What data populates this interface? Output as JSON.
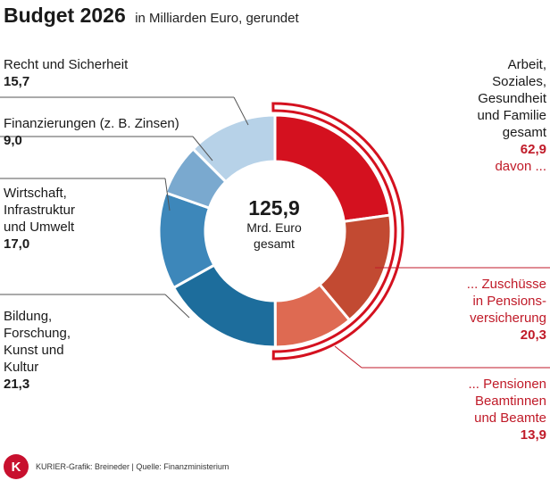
{
  "header": {
    "title": "Budget 2026",
    "subtitle": "in Milliarden Euro, gerundet"
  },
  "center": {
    "total": "125,9",
    "unit": "Mrd. Euro",
    "suffix": "gesamt"
  },
  "labels": {
    "recht": {
      "name": "Recht und Sicherheit",
      "value": "15,7"
    },
    "finanz": {
      "name": "Finanzierungen (z. B. Zinsen)",
      "value": "9,0"
    },
    "wirtschaft": {
      "name": [
        "Wirtschaft,",
        "Infrastruktur",
        "und Umwelt"
      ],
      "value": "17,0"
    },
    "bildung": {
      "name": [
        "Bildung,",
        "Forschung,",
        "Kunst und",
        "Kultur"
      ],
      "value": "21,3"
    },
    "arbeit": {
      "name": [
        "Arbeit,",
        "Soziales,",
        "Gesundheit",
        "und Familie",
        "gesamt"
      ],
      "value": "62,9",
      "note": "davon ..."
    },
    "zuschuesse": {
      "name": [
        "... Zuschüsse",
        "in Pensions-",
        "versicherung"
      ],
      "value": "20,3"
    },
    "pensionen": {
      "name": [
        "... Pensionen",
        "Beamtinnen",
        "und Beamte"
      ],
      "value": "13,9"
    }
  },
  "footer": {
    "logo_letter": "K",
    "credit": "KURIER-Grafik: Breineder | Quelle: Finanzministerium"
  },
  "chart_data": {
    "type": "pie",
    "total": 125.9,
    "slices": [
      {
        "label": "Arbeit, Soziales, Gesundheit und Familie (übrige)",
        "value": 28.7,
        "color": "#d4111f"
      },
      {
        "label": "Zuschüsse in Pensionsversicherung",
        "value": 20.3,
        "color": "#c24a32"
      },
      {
        "label": "Pensionen Beamtinnen und Beamte",
        "value": 13.9,
        "color": "#de6a52"
      },
      {
        "label": "Bildung, Forschung, Kunst und Kultur",
        "value": 21.3,
        "color": "#1d6d9c"
      },
      {
        "label": "Wirtschaft, Infrastruktur und Umwelt",
        "value": 17.0,
        "color": "#3d87ba"
      },
      {
        "label": "Finanzierungen (z. B. Zinsen)",
        "value": 9.0,
        "color": "#7aa9cf"
      },
      {
        "label": "Recht und Sicherheit",
        "value": 15.7,
        "color": "#b7d2e8"
      }
    ],
    "group": {
      "label": "Arbeit, Soziales, Gesundheit und Familie gesamt",
      "value": 62.9,
      "color": "#d4111f"
    }
  }
}
